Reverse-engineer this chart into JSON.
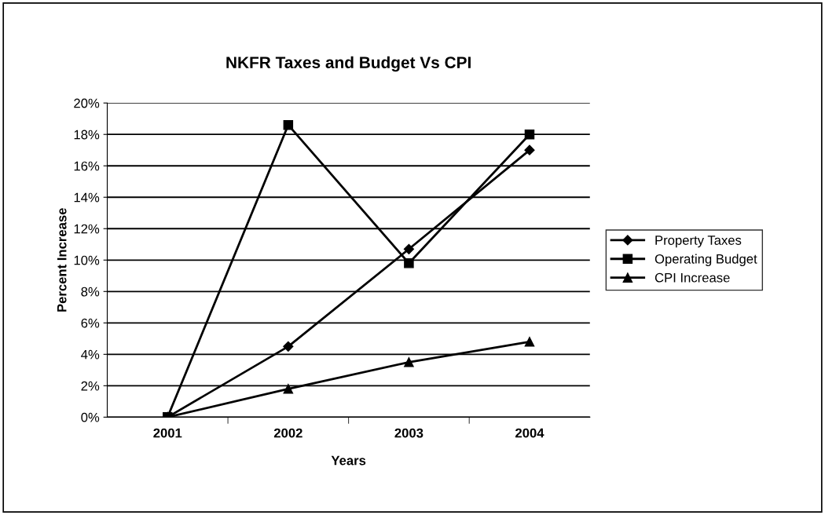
{
  "chart_data": {
    "type": "line",
    "title": "NKFR Taxes and Budget Vs CPI",
    "xlabel": "Years",
    "ylabel": "Percent Increase",
    "categories": [
      "2001",
      "2002",
      "2003",
      "2004"
    ],
    "series": [
      {
        "name": "Property Taxes",
        "color": "#000000",
        "marker": "diamond",
        "values": [
          0,
          4.5,
          10.7,
          17.0
        ]
      },
      {
        "name": "Operating Budget",
        "color": "#000000",
        "marker": "square",
        "values": [
          0,
          18.6,
          9.8,
          18.0
        ]
      },
      {
        "name": "CPI Increase",
        "color": "#000000",
        "marker": "triangle",
        "values": [
          0,
          1.8,
          3.5,
          4.8
        ]
      }
    ],
    "ylim": [
      0,
      20
    ],
    "yticks": [
      {
        "value": 0,
        "label": "0%"
      },
      {
        "value": 2,
        "label": "2%"
      },
      {
        "value": 4,
        "label": "4%"
      },
      {
        "value": 6,
        "label": "6%"
      },
      {
        "value": 8,
        "label": "8%"
      },
      {
        "value": 10,
        "label": "10%"
      },
      {
        "value": 12,
        "label": "12%"
      },
      {
        "value": 14,
        "label": "14%"
      },
      {
        "value": 16,
        "label": "16%"
      },
      {
        "value": 18,
        "label": "18%"
      },
      {
        "value": 20,
        "label": "20%"
      }
    ],
    "grid": "y",
    "legend": "right",
    "line_style": "solid"
  }
}
